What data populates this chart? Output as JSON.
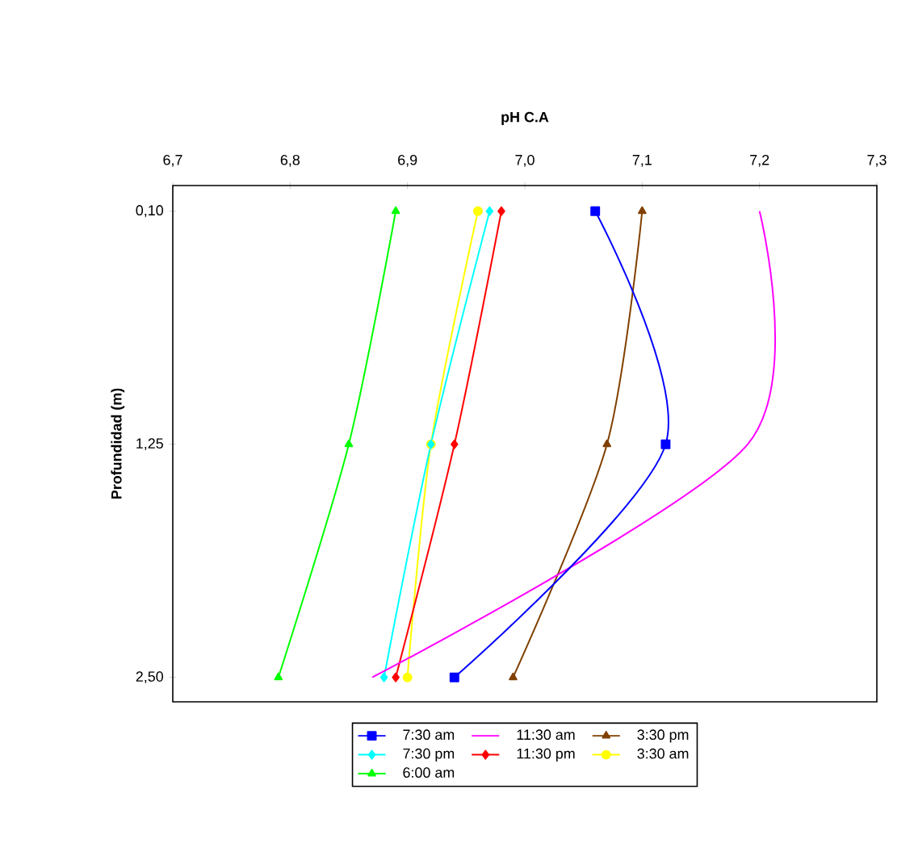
{
  "chart_data": {
    "type": "line",
    "orientation": "horizontal",
    "title": "pH  C.A",
    "ylabel": "Profundidad (m)",
    "categories": [
      "0,10",
      "1,25",
      "2,50"
    ],
    "xlim": [
      6.7,
      7.3
    ],
    "xticks": [
      {
        "value": 6.7,
        "label": "6,7"
      },
      {
        "value": 6.8,
        "label": "6,8"
      },
      {
        "value": 6.9,
        "label": "6,9"
      },
      {
        "value": 7.0,
        "label": "7,0"
      },
      {
        "value": 7.1,
        "label": "7,1"
      },
      {
        "value": 7.2,
        "label": "7,2"
      },
      {
        "value": 7.3,
        "label": "7,3"
      }
    ],
    "series": [
      {
        "name": "7:30 am",
        "color": "#0000ff",
        "marker": "square",
        "values": [
          7.06,
          7.12,
          6.94
        ]
      },
      {
        "name": "11:30 am",
        "color": "#ff00ff",
        "marker": "none",
        "values": [
          7.2,
          7.19,
          6.87
        ]
      },
      {
        "name": "3:30 pm",
        "color": "#804000",
        "marker": "triangle",
        "values": [
          7.1,
          7.07,
          6.99
        ]
      },
      {
        "name": "7:30 pm",
        "color": "#00ffff",
        "marker": "diamond",
        "values": [
          6.97,
          6.92,
          6.88
        ]
      },
      {
        "name": "11:30 pm",
        "color": "#ff0000",
        "marker": "diamond",
        "values": [
          6.98,
          6.94,
          6.89
        ]
      },
      {
        "name": "3:30 am",
        "color": "#ffff00",
        "marker": "circle",
        "values": [
          6.96,
          6.92,
          6.9
        ]
      },
      {
        "name": "6:00 am",
        "color": "#00ff00",
        "marker": "triangle",
        "values": [
          6.89,
          6.85,
          6.79
        ]
      }
    ],
    "line_style": "solid",
    "grid": false,
    "legend": "bottom"
  }
}
